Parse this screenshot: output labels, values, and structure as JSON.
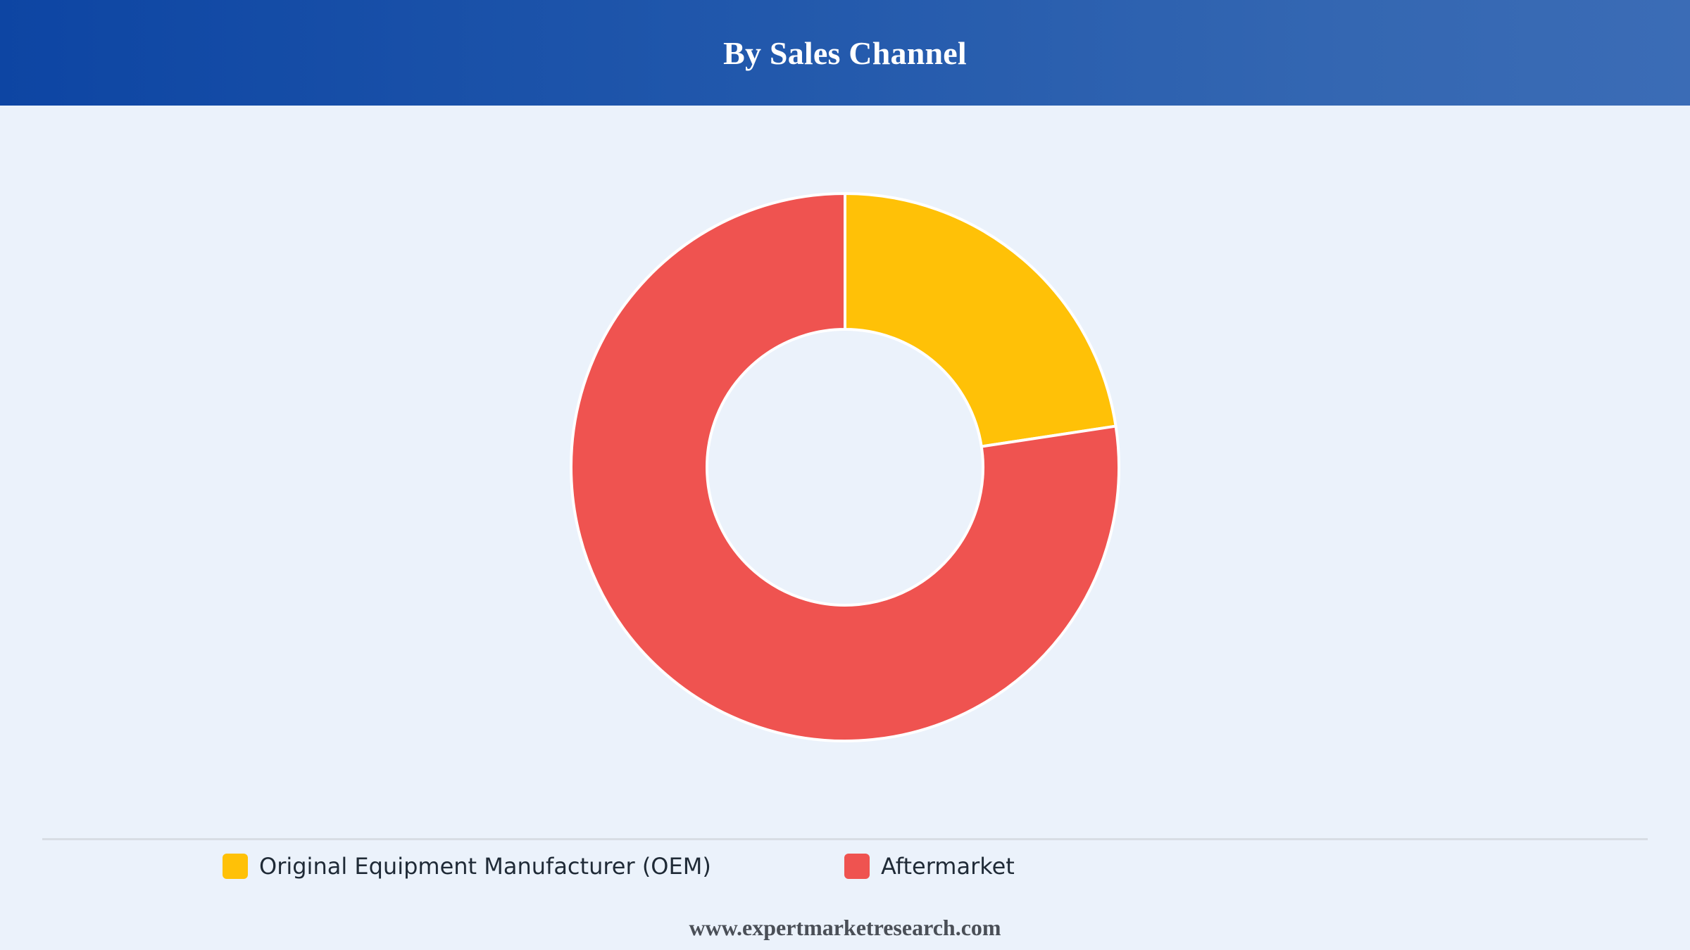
{
  "header": {
    "title": "By Sales Channel"
  },
  "chart_data": {
    "type": "pie",
    "variant": "donut",
    "title": "By Sales Channel",
    "categories": [
      "Original Equipment Manufacturer (OEM)",
      "Aftermarket"
    ],
    "values": [
      22.6,
      77.4
    ],
    "colors": [
      "#ffc107",
      "#ef5350"
    ],
    "legend_position": "bottom",
    "start_angle_deg": 0,
    "direction": "clockwise"
  },
  "legend": {
    "items": [
      {
        "label": "Original Equipment Manufacturer (OEM)",
        "color": "#ffc107"
      },
      {
        "label": "Aftermarket",
        "color": "#ef5350"
      }
    ]
  },
  "footer": {
    "source": "www.expertmarketresearch.com"
  }
}
